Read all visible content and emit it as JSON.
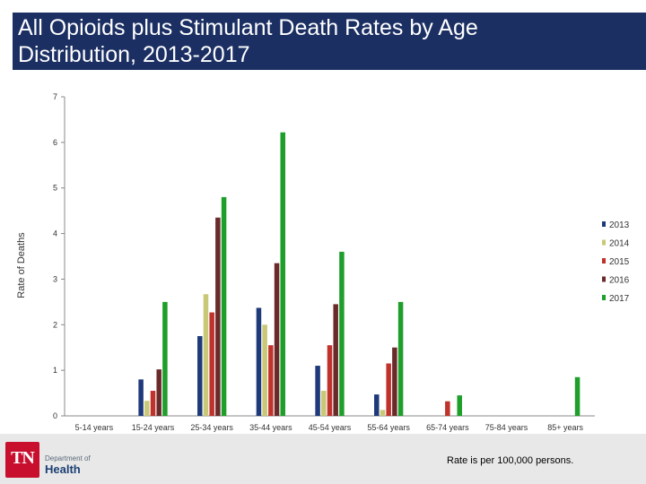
{
  "title_line1": "All Opioids plus Stimulant Death Rates by Age",
  "title_line2": "Distribution, 2013-2017",
  "footer_note": "Rate is per 100,000 persons.",
  "logo": {
    "mark": "TN",
    "department": "Department of",
    "name": "Health"
  },
  "colors": {
    "title_bar": "#1b2f63",
    "series": [
      "#1f3a7a",
      "#c8c878",
      "#c0322c",
      "#6a2a2a",
      "#1e9e2a"
    ]
  },
  "chart_data": {
    "type": "bar",
    "title": "",
    "xlabel": "",
    "ylabel": "Rate of Deaths",
    "ylim": [
      0,
      7
    ],
    "yticks": [
      0,
      1,
      2,
      3,
      4,
      5,
      6,
      7
    ],
    "grid": false,
    "legend_position": "right",
    "categories": [
      "5-14 years",
      "15-24 years",
      "25-34 years",
      "35-44 years",
      "45-54 years",
      "55-64 years",
      "65-74 years",
      "75-84 years",
      "85+ years"
    ],
    "series": [
      {
        "name": "2013",
        "values": [
          0,
          0.8,
          1.75,
          2.37,
          1.1,
          0.47,
          0,
          0,
          0
        ]
      },
      {
        "name": "2014",
        "values": [
          0,
          0.33,
          2.67,
          2.0,
          0.55,
          0.13,
          0,
          0,
          0
        ]
      },
      {
        "name": "2015",
        "values": [
          0,
          0.55,
          2.27,
          1.55,
          1.55,
          1.15,
          0.32,
          0,
          0
        ]
      },
      {
        "name": "2016",
        "values": [
          0,
          1.02,
          4.35,
          3.35,
          2.45,
          1.5,
          0,
          0,
          0
        ]
      },
      {
        "name": "2017",
        "values": [
          0,
          2.5,
          4.8,
          6.22,
          3.6,
          2.5,
          0.45,
          0,
          0.85
        ]
      }
    ]
  }
}
